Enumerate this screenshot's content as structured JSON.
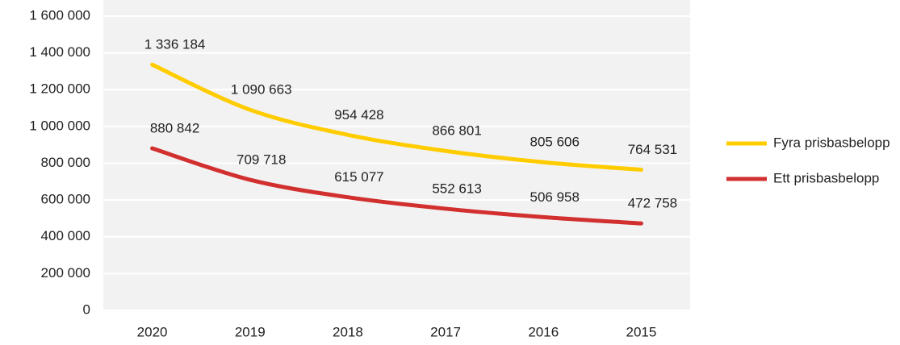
{
  "chart_data": {
    "type": "line",
    "categories": [
      "2020",
      "2019",
      "2018",
      "2017",
      "2016",
      "2015"
    ],
    "series": [
      {
        "name": "Fyra prisbasbelopp",
        "color": "#ffcc00",
        "values": [
          1336184,
          1090663,
          954428,
          866801,
          805606,
          764531
        ],
        "value_labels": [
          "1 336 184",
          "1 090 663",
          "954 428",
          "866 801",
          "805 606",
          "764 531"
        ]
      },
      {
        "name": "Ett prisbasbelopp",
        "color": "#d22f2f",
        "values": [
          880842,
          709718,
          615077,
          552613,
          506958,
          472758
        ],
        "value_labels": [
          "880 842",
          "709 718",
          "615 077",
          "552 613",
          "506 958",
          "472 758"
        ]
      }
    ],
    "ylim": [
      0,
      1600000
    ],
    "yticks": [
      0,
      {
        "value": 200000,
        "label": "200 000"
      },
      {
        "value": 400000,
        "label": "400 000"
      },
      {
        "value": 600000,
        "label": "600 000"
      },
      {
        "value": 800000,
        "label": "800 000"
      },
      {
        "value": 1000000,
        "label": "1 000 000"
      },
      {
        "value": 1200000,
        "label": "1 200 000"
      },
      {
        "value": 1400000,
        "label": "1 400 000"
      },
      {
        "value": 1600000,
        "label": "1 600 000"
      }
    ],
    "grid": true,
    "legend": "right"
  }
}
